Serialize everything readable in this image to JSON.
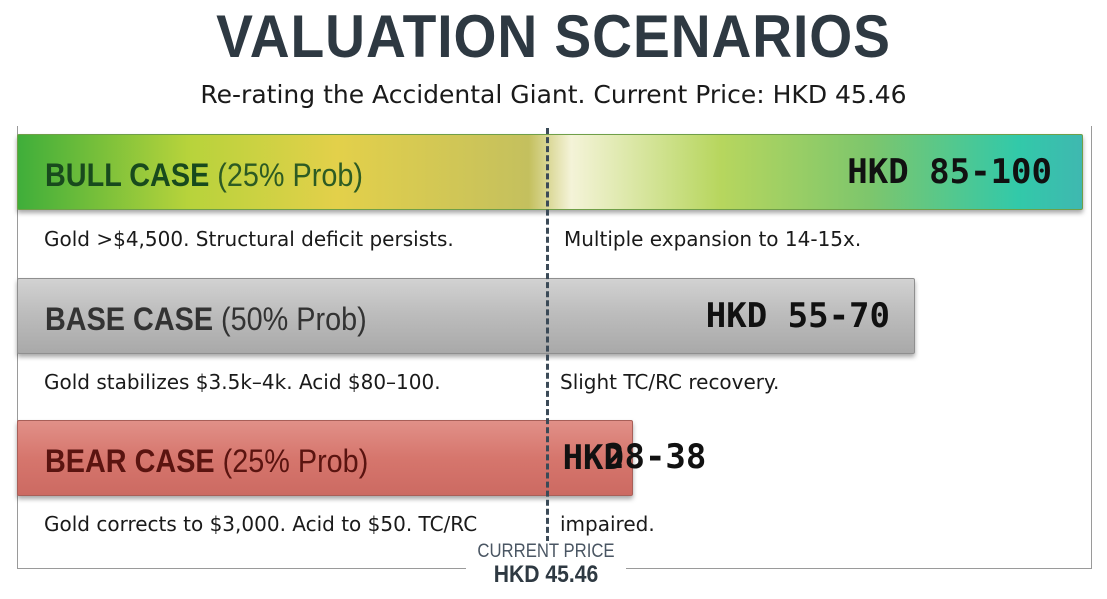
{
  "title": "VALUATION SCENARIOS",
  "subtitle": "Re-rating the Accidental Giant. Current Price: HKD 45.46",
  "current_marker": {
    "label": "CURRENT PRICE",
    "value": "HKD 45.46"
  },
  "chart_data": {
    "type": "bar",
    "title": "VALUATION SCENARIOS",
    "subtitle": "Re-rating the Accidental Giant. Current Price: HKD 45.46",
    "current_price": 45.46,
    "currency": "HKD",
    "categories": [
      "BULL CASE",
      "BASE CASE",
      "BEAR CASE"
    ],
    "probabilities": [
      "25% Prob",
      "50% Prob",
      "25% Prob"
    ],
    "ranges": [
      [
        85,
        100
      ],
      [
        55,
        70
      ],
      [
        28,
        38
      ]
    ],
    "range_labels": [
      "HKD 85-100",
      "HKD 55-70",
      "HKD 28-38"
    ],
    "colors": [
      "#7dc66c",
      "#b5b5b5",
      "#d6766d"
    ],
    "notes": [
      [
        "Gold >$4,500. Structural deficit persists.",
        "Multiple expansion to 14-15x."
      ],
      [
        "Gold stabilizes $3.5k–4k. Acid $80–100.",
        "Slight TC/RC recovery."
      ],
      [
        "Gold corrects to $3,000. Acid to $50. TC/RC",
        "impaired."
      ]
    ]
  },
  "bull": {
    "case": "BULL CASE",
    "prob": "(25% Prob)",
    "price": "HKD 85-100",
    "note_left": "Gold >$4,500. Structural deficit persists.",
    "note_right": "Multiple expansion to 14-15x."
  },
  "base": {
    "case": "BASE CASE",
    "prob": "(50% Prob)",
    "price": "HKD 55-70",
    "note_left": "Gold stabilizes $3.5k–4k. Acid $80–100.",
    "note_right": "Slight TC/RC recovery."
  },
  "bear": {
    "case": "BEAR CASE",
    "prob": "(25% Prob)",
    "price_prefix": "HKD",
    "price_value": "28-38",
    "note_left": "Gold corrects to $3,000. Acid to $50. TC/RC",
    "note_right": "impaired."
  }
}
